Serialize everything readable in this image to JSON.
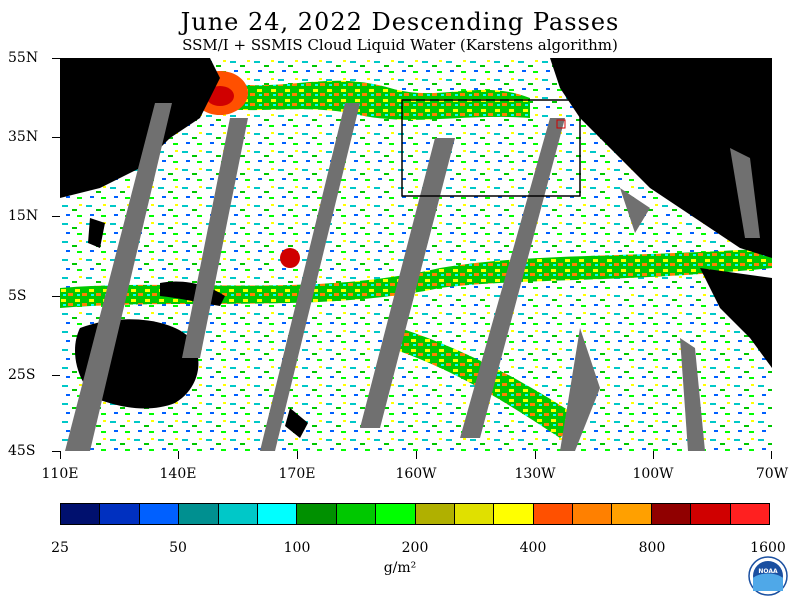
{
  "header": {
    "title": "June 24, 2022  Descending Passes",
    "subtitle": "SSM/I + SSMIS Cloud Liquid Water (Karstens algorithm)"
  },
  "map": {
    "latitude_labels": [
      "55N",
      "35N",
      "15N",
      "5S",
      "25S",
      "45S"
    ],
    "longitude_labels": [
      "110E",
      "140E",
      "170E",
      "160W",
      "130W",
      "100W",
      "70W"
    ],
    "land_color": "#000000",
    "no_data_color": "#707070",
    "clear_color": "#ffffff"
  },
  "colorbar": {
    "colors": [
      "#00106e",
      "#0030c0",
      "#0060ff",
      "#009090",
      "#00c8c8",
      "#00ffff",
      "#009000",
      "#00c800",
      "#00ff00",
      "#b0b000",
      "#e0e000",
      "#ffff00",
      "#ff5000",
      "#ff8000",
      "#ffa000",
      "#900000",
      "#d00000",
      "#ff2020"
    ],
    "tick_labels": [
      "25",
      "50",
      "100",
      "200",
      "400",
      "800",
      "1600"
    ],
    "units": "g/m²"
  },
  "logo": {
    "text": "NOAA"
  }
}
